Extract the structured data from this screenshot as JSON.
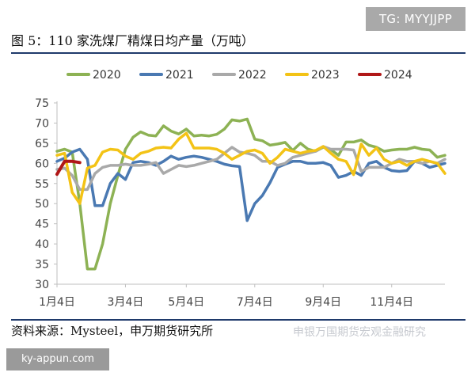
{
  "badge_top": "TG: MYYJJPP",
  "title": "图 5：110 家洗煤厂精煤日均产量（万吨）",
  "source": "资料来源：Mysteel，申万期货研究所",
  "watermark": "申银万国期货宏观金融研究",
  "badge_bottom": "ky-appun.com",
  "chart_data": {
    "type": "line",
    "title": "",
    "xlabel": "",
    "ylabel": "",
    "ylim": [
      30,
      75
    ],
    "yticks": [
      30,
      35,
      40,
      45,
      50,
      55,
      60,
      65,
      70,
      75
    ],
    "xlim": [
      1,
      52
    ],
    "xticks": [
      {
        "week": 1,
        "label": "1月4日"
      },
      {
        "week": 10,
        "label": "3月4日"
      },
      {
        "week": 18,
        "label": "5月4日"
      },
      {
        "week": 27,
        "label": "7月4日"
      },
      {
        "week": 36,
        "label": "9月4日"
      },
      {
        "week": 45,
        "label": "11月4日"
      }
    ],
    "grid": false,
    "legend_position": "top",
    "series": [
      {
        "name": "2020",
        "color": "#8db254",
        "x": [
          1,
          2,
          3,
          4,
          5,
          6,
          7,
          8,
          9,
          10,
          11,
          12,
          13,
          14,
          15,
          16,
          17,
          18,
          19,
          20,
          21,
          22,
          23,
          24,
          25,
          26,
          27,
          28,
          29,
          30,
          31,
          32,
          33,
          34,
          35,
          36,
          37,
          38,
          39,
          40,
          41,
          42,
          43,
          44,
          45,
          46,
          47,
          48,
          49,
          50,
          51,
          52
        ],
        "y": [
          63,
          63.5,
          62.8,
          50,
          33.8,
          33.8,
          40,
          50,
          57,
          63.5,
          66.5,
          67.8,
          67,
          66.8,
          69.3,
          68,
          67.3,
          68.5,
          66.8,
          67,
          66.8,
          67.2,
          68.5,
          70.8,
          70.5,
          71,
          66,
          65.6,
          64.5,
          64.8,
          65.2,
          63.2,
          65,
          63.5,
          63,
          64,
          63.4,
          62,
          65.3,
          65.3,
          65.8,
          64.5,
          64,
          63,
          63.3,
          63.5,
          63.5,
          64,
          63.5,
          63.3,
          61.5,
          62
        ]
      },
      {
        "name": "2021",
        "color": "#4a79b2",
        "x": [
          1,
          2,
          3,
          4,
          5,
          6,
          7,
          8,
          9,
          10,
          11,
          12,
          13,
          14,
          15,
          16,
          17,
          18,
          19,
          20,
          21,
          22,
          23,
          24,
          25,
          26,
          27,
          28,
          29,
          30,
          31,
          32,
          33,
          34,
          35,
          36,
          37,
          38,
          39,
          40,
          41,
          42,
          43,
          44,
          45,
          46,
          47,
          48,
          49,
          50,
          51,
          52
        ],
        "y": [
          60.5,
          61.3,
          62.8,
          63.5,
          61,
          49.5,
          49.5,
          55,
          57.5,
          56,
          60.2,
          60.5,
          60.2,
          59.5,
          60.5,
          61.8,
          61,
          61.5,
          61.8,
          61.5,
          61,
          60.5,
          59.8,
          59.4,
          59.2,
          45.8,
          50,
          52,
          55.2,
          59,
          59.8,
          60.5,
          60.5,
          60,
          60,
          60.2,
          59.5,
          56.5,
          57,
          58,
          57,
          60,
          60.5,
          59,
          58.2,
          58,
          58.2,
          60.5,
          60,
          59,
          59.5,
          60
        ]
      },
      {
        "name": "2022",
        "color": "#a9a9a9",
        "x": [
          1,
          2,
          3,
          4,
          5,
          6,
          7,
          8,
          9,
          10,
          11,
          12,
          13,
          14,
          15,
          16,
          17,
          18,
          19,
          20,
          21,
          22,
          23,
          24,
          25,
          26,
          27,
          28,
          29,
          30,
          31,
          32,
          33,
          34,
          35,
          36,
          37,
          38,
          39,
          40,
          41,
          42,
          43,
          44,
          45,
          46,
          47,
          48,
          49,
          50,
          51,
          52
        ],
        "y": [
          58.5,
          58.8,
          57,
          53.5,
          53.5,
          57.5,
          59,
          59.5,
          59.5,
          59.8,
          59.5,
          59.5,
          59.8,
          60.2,
          57.5,
          58.5,
          59.5,
          59.2,
          59.5,
          60,
          60.5,
          61,
          62.5,
          64,
          62.8,
          62.5,
          62,
          60.5,
          60.5,
          59.5,
          60,
          61.5,
          62,
          62.5,
          63,
          64.2,
          63.5,
          63.5,
          63.5,
          63.3,
          58,
          59,
          59,
          59,
          60,
          61,
          60.5,
          60.5,
          60,
          60.5,
          60,
          61
        ]
      },
      {
        "name": "2023",
        "color": "#f3c316",
        "x": [
          1,
          2,
          3,
          4,
          5,
          6,
          7,
          8,
          9,
          10,
          11,
          12,
          13,
          14,
          15,
          16,
          17,
          18,
          19,
          20,
          21,
          22,
          23,
          24,
          25,
          26,
          27,
          28,
          29,
          30,
          31,
          32,
          33,
          34,
          35,
          36,
          37,
          38,
          39,
          40,
          41,
          42,
          43,
          44,
          45,
          46,
          47,
          48,
          49,
          50,
          51,
          52
        ],
        "y": [
          62,
          62.5,
          52.8,
          50,
          58.8,
          59.5,
          62.8,
          63.5,
          63.3,
          61.8,
          61,
          62.5,
          63,
          63.8,
          64,
          63.8,
          66,
          67.5,
          63.8,
          63.8,
          63.8,
          63.5,
          62.5,
          61,
          62,
          63,
          63.3,
          62.5,
          60,
          61.5,
          63.5,
          63,
          62.5,
          63,
          63.2,
          64.2,
          62.5,
          61,
          60.5,
          57.2,
          64.8,
          62,
          63.8,
          61,
          60,
          60.5,
          59.5,
          60.5,
          61,
          60.5,
          60,
          57.5
        ]
      },
      {
        "name": "2024",
        "color": "#b01717",
        "x": [
          1,
          2,
          3,
          4
        ],
        "y": [
          57.3,
          60.5,
          60.5,
          60.2
        ]
      }
    ]
  }
}
